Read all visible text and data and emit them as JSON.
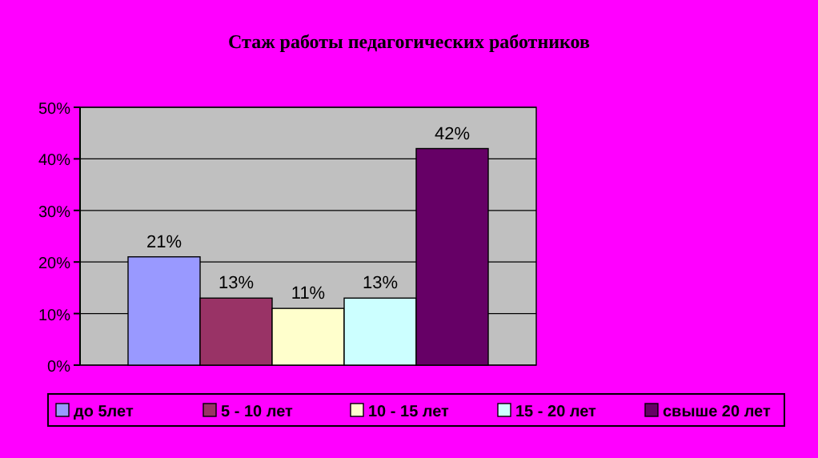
{
  "chart_data": {
    "type": "bar",
    "title": "Стаж работы педагогических работников",
    "categories": [
      null
    ],
    "series": [
      {
        "name": "до 5лет",
        "color": "#9999ff",
        "values": [
          21
        ],
        "value_labels": [
          "21%"
        ]
      },
      {
        "name": "5 - 10 лет",
        "color": "#993366",
        "values": [
          13
        ],
        "value_labels": [
          "13%"
        ]
      },
      {
        "name": "10 - 15 лет",
        "color": "#ffffcc",
        "values": [
          11
        ],
        "value_labels": [
          "11%"
        ]
      },
      {
        "name": "15 - 20 лет",
        "color": "#ccffff",
        "values": [
          13
        ],
        "value_labels": [
          "13%"
        ]
      },
      {
        "name": "свыше 20 лет",
        "color": "#660066",
        "values": [
          42
        ],
        "value_labels": [
          "42%"
        ]
      }
    ],
    "ylim": [
      0,
      50
    ],
    "yticks": [
      {
        "value": 0,
        "label": "0%"
      },
      {
        "value": 10,
        "label": "10%"
      },
      {
        "value": 20,
        "label": "20%"
      },
      {
        "value": 30,
        "label": "30%"
      },
      {
        "value": 40,
        "label": "40%"
      },
      {
        "value": 50,
        "label": "50%"
      }
    ],
    "grid": "y",
    "legend": "bottom"
  }
}
